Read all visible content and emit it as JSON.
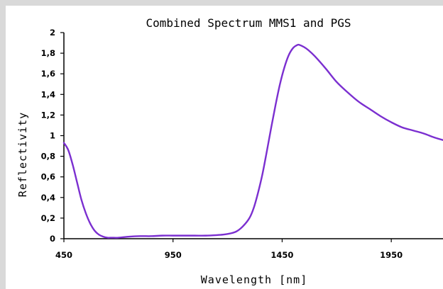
{
  "chart_data": {
    "type": "line",
    "title": "Combined Spectrum MMS1 and PGS",
    "xlabel": "Wavelength [nm]",
    "ylabel": "Reflectivity",
    "xlim": [
      450,
      2200
    ],
    "ylim": [
      0,
      2
    ],
    "x_ticks": [
      450,
      950,
      1450,
      1950
    ],
    "x_tick_labels": [
      "450",
      "950",
      "1450",
      "1950"
    ],
    "y_ticks": [
      0,
      0.2,
      0.4,
      0.6,
      0.8,
      1,
      1.2,
      1.4,
      1.6,
      1.8,
      2
    ],
    "y_tick_labels": [
      "0",
      "0,2",
      "0,4",
      "0,6",
      "0,8",
      "1",
      "1,2",
      "1,4",
      "1,6",
      "1,8",
      "2"
    ],
    "grid": false,
    "legend": "none",
    "series": [
      {
        "color": "#7b2fd0",
        "x": [
          450,
          470,
          490,
          510,
          530,
          550,
          570,
          590,
          610,
          630,
          650,
          670,
          700,
          750,
          800,
          850,
          900,
          950,
          1000,
          1050,
          1100,
          1150,
          1180,
          1210,
          1240,
          1270,
          1300,
          1320,
          1340,
          1360,
          1380,
          1400,
          1420,
          1440,
          1460,
          1480,
          1500,
          1520,
          1530,
          1550,
          1570,
          1600,
          1650,
          1700,
          1750,
          1800,
          1850,
          1900,
          1950,
          2000,
          2050,
          2100,
          2150,
          2200
        ],
        "y": [
          0.93,
          0.86,
          0.72,
          0.55,
          0.38,
          0.25,
          0.15,
          0.08,
          0.04,
          0.02,
          0.01,
          0.01,
          0.01,
          0.02,
          0.025,
          0.025,
          0.03,
          0.03,
          0.03,
          0.03,
          0.03,
          0.035,
          0.04,
          0.05,
          0.07,
          0.12,
          0.2,
          0.3,
          0.45,
          0.63,
          0.85,
          1.08,
          1.3,
          1.5,
          1.66,
          1.78,
          1.85,
          1.88,
          1.88,
          1.86,
          1.83,
          1.77,
          1.65,
          1.52,
          1.42,
          1.33,
          1.26,
          1.19,
          1.13,
          1.08,
          1.05,
          1.02,
          0.98,
          0.95
        ]
      }
    ]
  }
}
